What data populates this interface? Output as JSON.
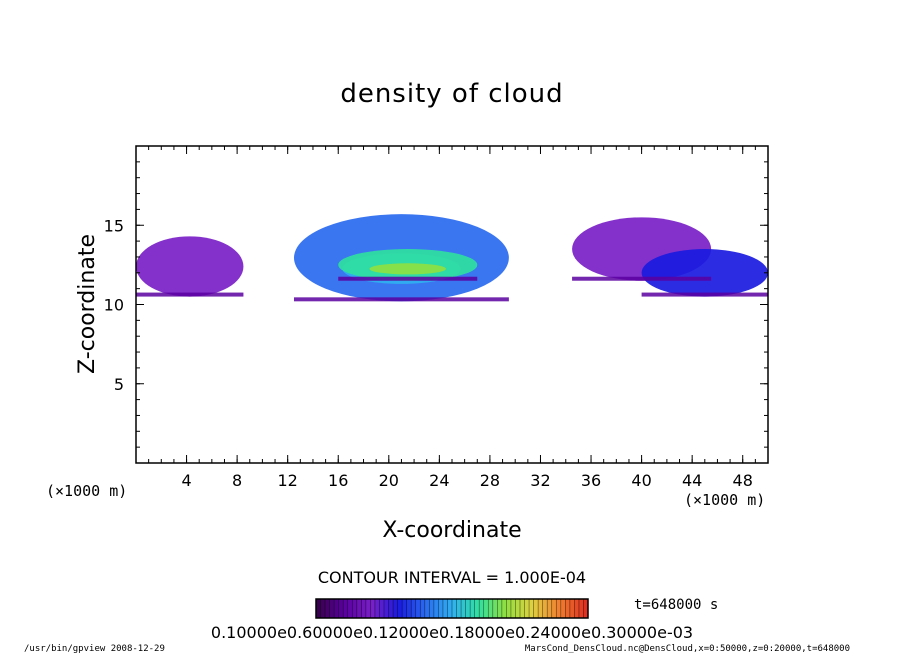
{
  "chart_data": {
    "type": "heatmap",
    "title": "density of cloud",
    "xlabel": "X-coordinate",
    "ylabel": "Z-coordinate",
    "x_unit_left": "(×1000 m)",
    "x_unit_right": "(×1000 m)",
    "xlim": [
      0,
      50
    ],
    "ylim": [
      0,
      20
    ],
    "x_ticks": [
      "4",
      "8",
      "12",
      "16",
      "20",
      "24",
      "28",
      "32",
      "36",
      "40",
      "44",
      "48"
    ],
    "x_tick_values": [
      4,
      8,
      12,
      16,
      20,
      24,
      28,
      32,
      36,
      40,
      44,
      48
    ],
    "y_ticks": [
      "5",
      "10",
      "15"
    ],
    "y_tick_values": [
      5,
      10,
      15
    ],
    "contour_interval": "CONTOUR INTERVAL = 1.000E-04",
    "time_label": "t=648000  s",
    "colorbar_labels": "0.10000e0.60000e0.12000e0.18000e0.24000e0.30000e-03",
    "colorbar_range": [
      0.0001,
      0.0007
    ],
    "colorscale": [
      "#3a0050",
      "#5a00a0",
      "#7a20c8",
      "#1a1ae0",
      "#2a6af0",
      "#30b0f0",
      "#30e0a0",
      "#90e040",
      "#e0d040",
      "#f08030",
      "#e03020"
    ],
    "regions": [
      {
        "x": [
          0,
          8.5
        ],
        "z": [
          10.5,
          14.3
        ],
        "level": 2
      },
      {
        "x": [
          12.5,
          29.5
        ],
        "z": [
          10.2,
          15.7
        ],
        "level": 4
      },
      {
        "x": [
          16,
          27
        ],
        "z": [
          11.5,
          13.5
        ],
        "level": 6
      },
      {
        "x": [
          34.5,
          45.5
        ],
        "z": [
          11.5,
          15.5
        ],
        "level": 2
      },
      {
        "x": [
          40,
          50
        ],
        "z": [
          10.5,
          13.5
        ],
        "level": 3
      }
    ]
  },
  "footer": {
    "left": "/usr/bin/gpview   2008-12-29",
    "right": "MarsCond_DensCloud.nc@DensCloud,x=0:50000,z=0:20000,t=648000"
  }
}
